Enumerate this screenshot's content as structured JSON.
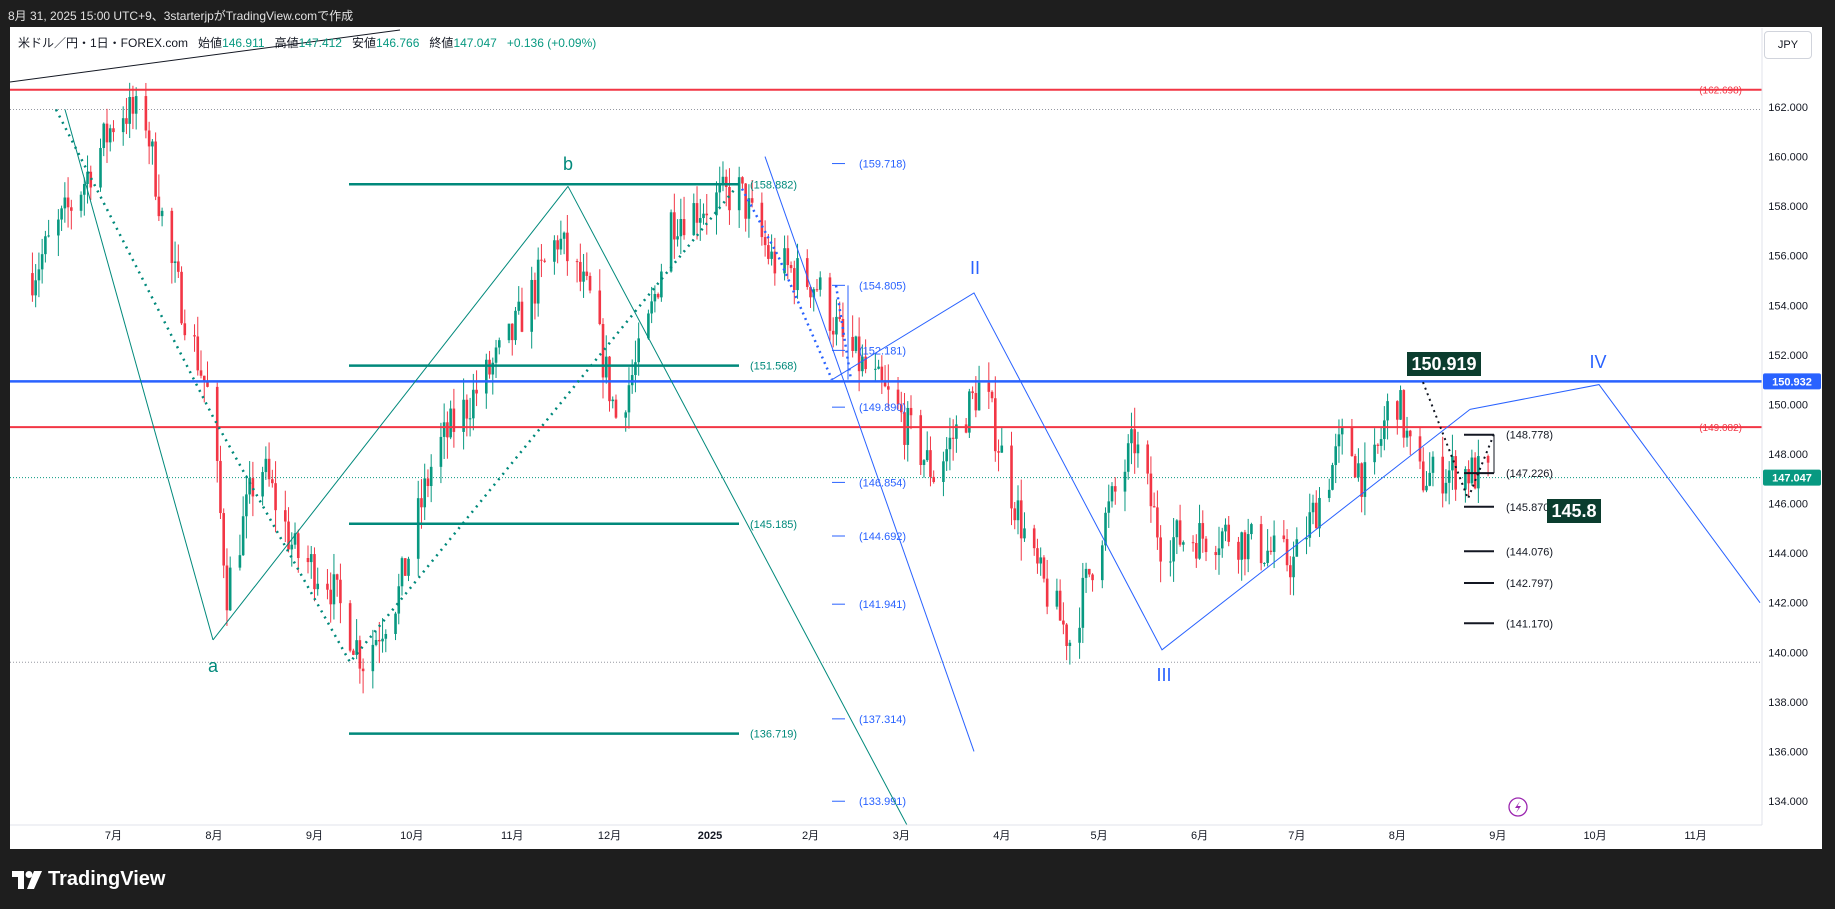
{
  "header": {
    "caption": "8月 31, 2025 15:00 UTC+9、3starterjpがTradingView.comで作成"
  },
  "legend": {
    "symbol": "米ドル／円・1日・FOREX.com",
    "open_label": "始値",
    "open": "146.911",
    "high_label": "高値",
    "high": "147.412",
    "low_label": "安値",
    "low": "146.766",
    "close_label": "終値",
    "close": "147.047",
    "change": "+0.136 (+0.09%)"
  },
  "currency_button": "JPY",
  "footer": {
    "logo_text": "TradingView"
  },
  "colors": {
    "up": "#089981",
    "down": "#f23645",
    "teal": "#00897b",
    "blue": "#2962ff",
    "red": "#f23645",
    "dark": "#0b3d2e"
  },
  "chart_data": {
    "type": "candlestick",
    "symbol": "USDJPY",
    "interval": "1D",
    "ylim": [
      133,
      164
    ],
    "y_ticks": [
      "134.000",
      "136.000",
      "138.000",
      "140.000",
      "142.000",
      "144.000",
      "146.000",
      "148.000",
      "150.000",
      "152.000",
      "154.000",
      "156.000",
      "158.000",
      "160.000",
      "162.000"
    ],
    "x_ticks": [
      {
        "label": "7月",
        "date": "2024-07-01"
      },
      {
        "label": "8月",
        "date": "2024-08-01"
      },
      {
        "label": "9月",
        "date": "2024-09-01"
      },
      {
        "label": "10月",
        "date": "2024-10-01"
      },
      {
        "label": "11月",
        "date": "2024-11-01"
      },
      {
        "label": "12月",
        "date": "2024-12-01"
      },
      {
        "label": "2025",
        "date": "2025-01-01"
      },
      {
        "label": "2月",
        "date": "2025-02-01"
      },
      {
        "label": "3月",
        "date": "2025-03-01"
      },
      {
        "label": "4月",
        "date": "2025-04-01"
      },
      {
        "label": "5月",
        "date": "2025-05-01"
      },
      {
        "label": "6月",
        "date": "2025-06-01"
      },
      {
        "label": "7月",
        "date": "2025-07-01"
      },
      {
        "label": "8月",
        "date": "2025-08-01"
      },
      {
        "label": "9月",
        "date": "2025-09-01"
      },
      {
        "label": "10月",
        "date": "2025-10-01"
      },
      {
        "label": "11月",
        "date": "2025-11-01"
      }
    ],
    "price_path": [
      [
        "2024-06-06",
        155.3
      ],
      [
        "2024-06-20",
        158.5
      ],
      [
        "2024-07-03",
        161.9
      ],
      [
        "2024-07-11",
        161.5
      ],
      [
        "2024-07-18",
        156.0
      ],
      [
        "2024-07-31",
        150.0
      ],
      [
        "2024-08-05",
        142.5
      ],
      [
        "2024-08-15",
        147.8
      ],
      [
        "2024-08-26",
        144.0
      ],
      [
        "2024-09-05",
        143.0
      ],
      [
        "2024-09-16",
        139.7
      ],
      [
        "2024-09-27",
        142.4
      ],
      [
        "2024-10-08",
        148.0
      ],
      [
        "2024-10-31",
        152.5
      ],
      [
        "2024-11-15",
        156.7
      ],
      [
        "2024-11-25",
        154.2
      ],
      [
        "2024-12-03",
        149.5
      ],
      [
        "2024-12-12",
        152.5
      ],
      [
        "2024-12-20",
        157.5
      ],
      [
        "2025-01-10",
        158.6
      ],
      [
        "2025-01-20",
        155.8
      ],
      [
        "2025-02-03",
        154.8
      ],
      [
        "2025-02-11",
        152.5
      ],
      [
        "2025-02-27",
        149.9
      ],
      [
        "2025-03-11",
        147.2
      ],
      [
        "2025-03-26",
        150.9
      ],
      [
        "2025-04-04",
        146.5
      ],
      [
        "2025-04-11",
        143.5
      ],
      [
        "2025-04-22",
        140.5
      ],
      [
        "2025-05-02",
        145.0
      ],
      [
        "2025-05-12",
        148.5
      ],
      [
        "2025-05-20",
        144.5
      ],
      [
        "2025-06-10",
        144.8
      ],
      [
        "2025-06-30",
        143.6
      ],
      [
        "2025-07-16",
        148.8
      ],
      [
        "2025-07-23",
        146.5
      ],
      [
        "2025-07-31",
        150.8
      ],
      [
        "2025-08-07",
        147.0
      ],
      [
        "2025-08-20",
        147.4
      ],
      [
        "2025-08-29",
        147.05
      ]
    ],
    "horizontal_lines": [
      {
        "price": 162.698,
        "label": "(162.698)",
        "color": "#f23645"
      },
      {
        "price": 149.082,
        "label": "(149.082)",
        "color": "#f23645"
      },
      {
        "price": 150.932,
        "label": "150.932",
        "color": "#2962ff"
      }
    ],
    "price_tags": [
      {
        "price": 150.932,
        "label": "150.932",
        "color": "#2962ff"
      },
      {
        "price": 147.047,
        "label": "147.047",
        "color": "#089981"
      }
    ],
    "fib_levels_green": [
      {
        "price": 158.882,
        "label": "(158.882)"
      },
      {
        "price": 151.568,
        "label": "(151.568)"
      },
      {
        "price": 145.185,
        "label": "(145.185)"
      },
      {
        "price": 136.719,
        "label": "(136.719)"
      }
    ],
    "fib_levels_blue": [
      {
        "price": 159.718,
        "label": "(159.718)"
      },
      {
        "price": 154.805,
        "label": "(154.805)"
      },
      {
        "price": 152.181,
        "label": "(152.181)"
      },
      {
        "price": 149.89,
        "label": "(149.890)"
      },
      {
        "price": 146.854,
        "label": "(146.854)"
      },
      {
        "price": 144.692,
        "label": "(144.692)"
      },
      {
        "price": 141.941,
        "label": "(141.941)"
      },
      {
        "price": 137.314,
        "label": "(137.314)"
      },
      {
        "price": 133.991,
        "label": "(133.991)"
      }
    ],
    "fib_levels_black": [
      {
        "price": 148.778,
        "label": "(148.778)"
      },
      {
        "price": 147.226,
        "label": "(147.226)"
      },
      {
        "price": 145.87,
        "label": "(145.870)"
      },
      {
        "price": 144.076,
        "label": "(144.076)"
      },
      {
        "price": 142.797,
        "label": "(142.797)"
      },
      {
        "price": 141.17,
        "label": "(141.170)"
      }
    ],
    "wave_labels": [
      {
        "text": "a",
        "color": "#00897b"
      },
      {
        "text": "b",
        "color": "#00897b"
      },
      {
        "text": "II",
        "color": "#2962ff"
      },
      {
        "text": "III",
        "color": "#2962ff"
      },
      {
        "text": "IV",
        "color": "#2962ff"
      }
    ],
    "badges": [
      {
        "text": "150.919",
        "price": 150.919
      },
      {
        "text": "145.8",
        "price": 145.8
      }
    ]
  }
}
